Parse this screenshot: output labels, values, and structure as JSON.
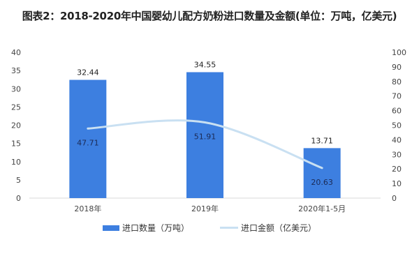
{
  "title": "图表2：2018-2020年中国婴幼儿配方奶粉进口数量及金额(单位：万吨，亿美元)",
  "legend": {
    "bar_label": "进口数量（万吨）",
    "line_label": "进口金额（亿美元）"
  },
  "colors": {
    "bar": "#3d7fe0",
    "line": "#c9e0f2"
  },
  "chart_data": {
    "type": "bar",
    "title": "图表2：2018-2020年中国婴幼儿配方奶粉进口数量及金额(单位：万吨，亿美元)",
    "categories": [
      "2018年",
      "2019年",
      "2020年1-5月"
    ],
    "series": [
      {
        "name": "进口数量（万吨）",
        "type": "bar",
        "axis": "left",
        "values": [
          32.44,
          34.55,
          13.71
        ]
      },
      {
        "name": "进口金额（亿美元）",
        "type": "line",
        "axis": "right",
        "values": [
          47.71,
          51.91,
          20.63
        ]
      }
    ],
    "ylim_left": [
      0,
      40
    ],
    "yticks_left": [
      0,
      5,
      10,
      15,
      20,
      25,
      30,
      35,
      40
    ],
    "ylim_right": [
      0,
      100
    ],
    "yticks_right": [
      0,
      10,
      20,
      30,
      40,
      50,
      60,
      70,
      80,
      90,
      100
    ],
    "legend_position": "bottom",
    "grid": false
  }
}
